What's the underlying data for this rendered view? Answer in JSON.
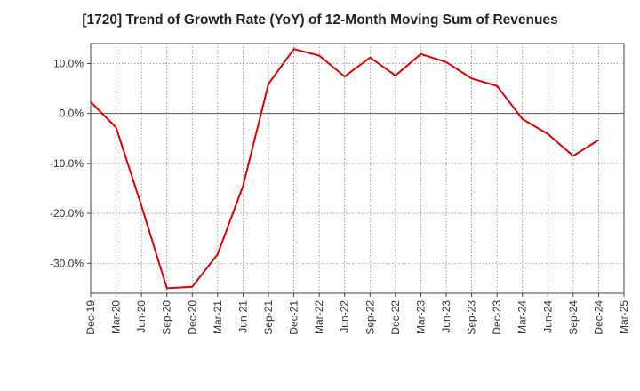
{
  "chart_data": {
    "type": "line",
    "title": "[1720]  Trend of Growth Rate (YoY) of 12-Month Moving Sum of Revenues",
    "xlabel": "",
    "ylabel": "",
    "x": [
      "Dec-19",
      "Mar-20",
      "Jun-20",
      "Sep-20",
      "Dec-20",
      "Mar-21",
      "Jun-21",
      "Sep-21",
      "Dec-21",
      "Mar-22",
      "Jun-22",
      "Sep-22",
      "Dec-22",
      "Mar-23",
      "Jun-23",
      "Sep-23",
      "Dec-23",
      "Mar-24",
      "Jun-24",
      "Sep-24",
      "Dec-24",
      "Mar-25"
    ],
    "series": [
      {
        "color": "#e00000",
        "values": [
          2.3,
          -2.8,
          -18.5,
          -35.0,
          -34.7,
          -28.2,
          -14.5,
          5.9,
          12.9,
          11.6,
          7.4,
          11.2,
          7.6,
          11.9,
          10.3,
          7.0,
          5.5,
          -1.1,
          -4.1,
          -8.5,
          -5.3,
          null
        ]
      }
    ],
    "yticks": [
      "10.0%",
      "0.0%",
      "-10.0%",
      "-20.0%",
      "-30.0%"
    ],
    "ytick_values": [
      10,
      0,
      -10,
      -20,
      -30
    ],
    "ylim": [
      -36.0,
      14.0
    ],
    "grid": true,
    "zero_line": true
  }
}
